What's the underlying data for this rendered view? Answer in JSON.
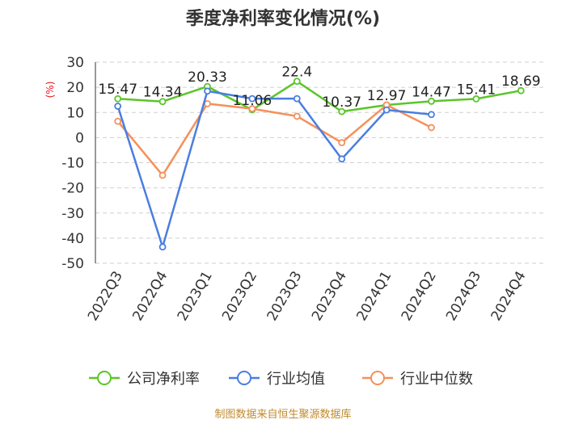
{
  "chart_data": {
    "type": "line",
    "title": "季度净利率变化情况(%)",
    "ylabel": "(%)",
    "ylim": [
      -50,
      30
    ],
    "yticks": [
      30,
      20,
      10,
      0,
      -10,
      -20,
      -30,
      -40,
      -50
    ],
    "categories": [
      "2022Q3",
      "2022Q4",
      "2023Q1",
      "2023Q2",
      "2023Q3",
      "2023Q4",
      "2024Q1",
      "2024Q2",
      "2024Q3",
      "2024Q4"
    ],
    "series": [
      {
        "name": "公司净利率",
        "color": "#5bc52a",
        "values": [
          15.47,
          14.34,
          20.33,
          11.06,
          22.4,
          10.37,
          12.97,
          14.47,
          15.41,
          18.69
        ],
        "labels": [
          "15.47",
          "14.34",
          "20.33",
          "11.06",
          "22.4",
          "10.37",
          "12.97",
          "14.47",
          "15.41",
          "18.69"
        ]
      },
      {
        "name": "行业均值",
        "color": "#4a7ee0",
        "values": [
          12.5,
          -43.5,
          18.5,
          15.5,
          15.5,
          -8.5,
          11.0,
          9.2,
          null,
          null
        ]
      },
      {
        "name": "行业中位数",
        "color": "#f5905a",
        "values": [
          6.5,
          -15.0,
          13.5,
          11.5,
          8.5,
          -2.0,
          13.0,
          4.0,
          null,
          null
        ]
      }
    ],
    "grid": true,
    "legend": "bottom"
  },
  "source": "制图数据来自恒生聚源数据库"
}
